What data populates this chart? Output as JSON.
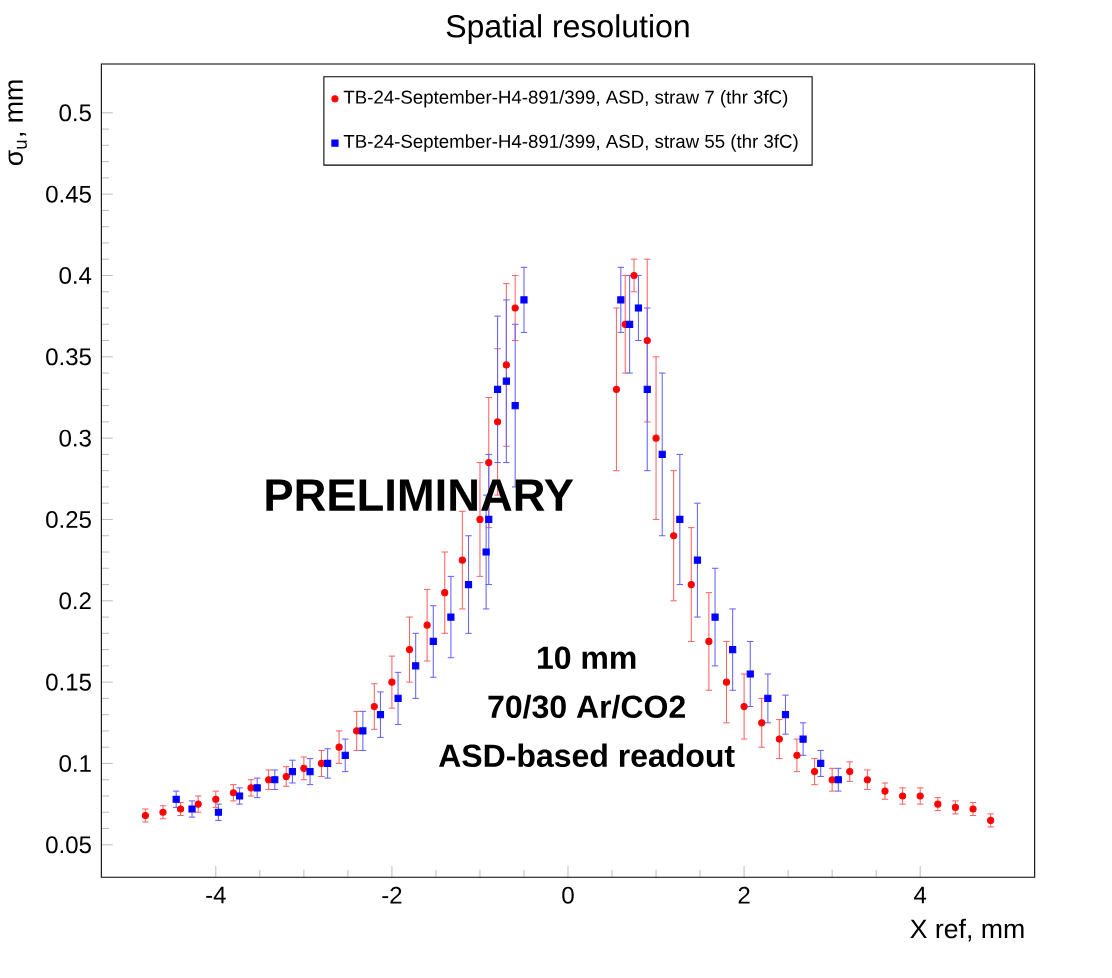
{
  "chart_data": {
    "type": "scatter",
    "title": "Spatial resolution",
    "xlabel": "X ref, mm",
    "ylabel": "σ$_{u}$, mm",
    "xlim": [
      -5.3,
      5.3
    ],
    "ylim": [
      0.03,
      0.53
    ],
    "xticks": [
      -4,
      -2,
      0,
      2,
      4
    ],
    "yticks": [
      0.05,
      0.1,
      0.15,
      0.2,
      0.25,
      0.3,
      0.35,
      0.4,
      0.45,
      0.5
    ],
    "legend": "top",
    "grid": false,
    "line_style": "solid",
    "annotations": [
      "PRELIMINARY",
      "10 mm",
      "70/30 Ar/CO2",
      "ASD-based readout"
    ],
    "series": [
      {
        "name": "TB-24-September-H4-891/399, ASD, straw 7 (thr 3fC)",
        "color": "#ff0000",
        "marker": "circle",
        "x": [
          -4.8,
          -4.6,
          -4.4,
          -4.2,
          -4.0,
          -3.8,
          -3.6,
          -3.4,
          -3.2,
          -3.0,
          -2.8,
          -2.6,
          -2.4,
          -2.2,
          -2.0,
          -1.8,
          -1.6,
          -1.4,
          -1.2,
          -1.0,
          -0.9,
          -0.8,
          -0.7,
          -0.6,
          0.55,
          0.65,
          0.75,
          0.9,
          1.0,
          1.2,
          1.4,
          1.6,
          1.8,
          2.0,
          2.2,
          2.4,
          2.6,
          2.8,
          3.0,
          3.2,
          3.4,
          3.6,
          3.8,
          4.0,
          4.2,
          4.4,
          4.6,
          4.8
        ],
        "values": [
          0.068,
          0.07,
          0.072,
          0.075,
          0.078,
          0.082,
          0.085,
          0.09,
          0.092,
          0.097,
          0.1,
          0.11,
          0.12,
          0.135,
          0.15,
          0.17,
          0.185,
          0.205,
          0.225,
          0.25,
          0.285,
          0.31,
          0.345,
          0.38,
          0.33,
          0.37,
          0.4,
          0.36,
          0.3,
          0.24,
          0.21,
          0.175,
          0.15,
          0.135,
          0.125,
          0.115,
          0.105,
          0.095,
          0.09,
          0.095,
          0.09,
          0.083,
          0.08,
          0.08,
          0.075,
          0.073,
          0.072,
          0.065
        ],
        "errors": [
          0.004,
          0.004,
          0.004,
          0.005,
          0.005,
          0.005,
          0.005,
          0.006,
          0.006,
          0.007,
          0.008,
          0.01,
          0.012,
          0.014,
          0.016,
          0.02,
          0.022,
          0.025,
          0.03,
          0.035,
          0.04,
          0.045,
          0.05,
          0.02,
          0.05,
          0.03,
          0.01,
          0.05,
          0.05,
          0.04,
          0.035,
          0.03,
          0.025,
          0.02,
          0.015,
          0.012,
          0.01,
          0.008,
          0.007,
          0.006,
          0.006,
          0.005,
          0.005,
          0.005,
          0.004,
          0.004,
          0.004,
          0.004
        ]
      },
      {
        "name": "TB-24-September-H4-891/399, ASD, straw 55 (thr 3fC)",
        "color": "#0000ff",
        "marker": "square",
        "x": [
          -4.45,
          -4.27,
          -3.97,
          -3.73,
          -3.53,
          -3.33,
          -3.13,
          -2.93,
          -2.73,
          -2.53,
          -2.33,
          -2.13,
          -1.93,
          -1.73,
          -1.53,
          -1.33,
          -1.13,
          -0.93,
          -0.9,
          -0.8,
          -0.7,
          -0.6,
          -0.5,
          0.6,
          0.7,
          0.8,
          0.9,
          1.07,
          1.27,
          1.47,
          1.67,
          1.87,
          2.07,
          2.27,
          2.47,
          2.67,
          2.87,
          3.07
        ],
        "values": [
          0.078,
          0.072,
          0.07,
          0.08,
          0.085,
          0.09,
          0.095,
          0.095,
          0.1,
          0.105,
          0.12,
          0.13,
          0.14,
          0.16,
          0.175,
          0.19,
          0.21,
          0.23,
          0.25,
          0.33,
          0.335,
          0.32,
          0.385,
          0.385,
          0.37,
          0.38,
          0.33,
          0.29,
          0.25,
          0.225,
          0.19,
          0.17,
          0.155,
          0.14,
          0.13,
          0.115,
          0.1,
          0.09
        ],
        "errors": [
          0.005,
          0.005,
          0.005,
          0.005,
          0.006,
          0.006,
          0.007,
          0.008,
          0.009,
          0.01,
          0.012,
          0.014,
          0.016,
          0.02,
          0.022,
          0.025,
          0.03,
          0.035,
          0.04,
          0.045,
          0.05,
          0.05,
          0.02,
          0.02,
          0.03,
          0.02,
          0.05,
          0.05,
          0.04,
          0.035,
          0.03,
          0.025,
          0.02,
          0.015,
          0.012,
          0.01,
          0.008,
          0.007
        ]
      }
    ]
  }
}
